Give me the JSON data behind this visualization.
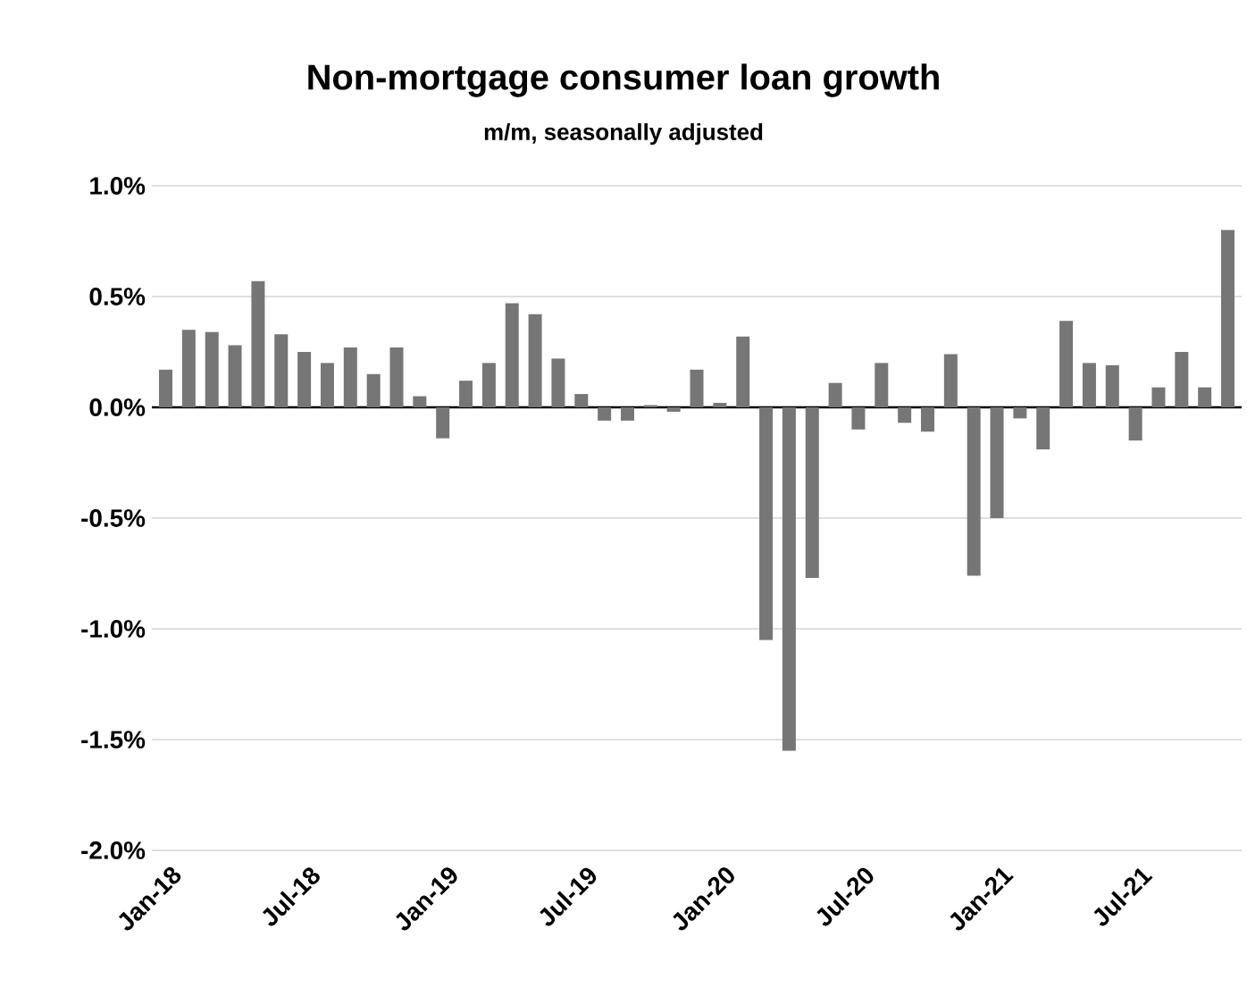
{
  "chart_data": {
    "type": "bar",
    "title": "Non-mortgage consumer loan growth",
    "subtitle": "m/m, seasonally adjusted",
    "categories": [
      "Jan-18",
      null,
      null,
      null,
      null,
      null,
      "Jul-18",
      null,
      null,
      null,
      null,
      null,
      "Jan-19",
      null,
      null,
      null,
      null,
      null,
      "Jul-19",
      null,
      null,
      null,
      null,
      null,
      "Jan-20",
      null,
      null,
      null,
      null,
      null,
      "Jul-20",
      null,
      null,
      null,
      null,
      null,
      "Jan-21",
      null,
      null,
      null,
      null,
      null,
      "Jul-21",
      null,
      null,
      null,
      null
    ],
    "values": [
      0.17,
      0.35,
      0.34,
      0.28,
      0.57,
      0.33,
      0.25,
      0.2,
      0.27,
      0.15,
      0.27,
      0.05,
      -0.14,
      0.12,
      0.2,
      0.47,
      0.42,
      0.22,
      0.06,
      -0.06,
      -0.06,
      0.01,
      -0.02,
      0.17,
      0.02,
      0.32,
      -1.05,
      -1.55,
      -0.77,
      0.11,
      -0.1,
      0.2,
      -0.07,
      -0.11,
      0.24,
      -0.76,
      -0.5,
      -0.05,
      -0.19,
      0.39,
      0.2,
      0.19,
      -0.15,
      0.09,
      0.25,
      0.09,
      0.8
    ],
    "color": "#767676",
    "ylim": [
      -2,
      1
    ],
    "yticks": [
      {
        "value": -2,
        "label": "-2.0%"
      },
      {
        "value": -1.5,
        "label": "-1.5%"
      },
      {
        "value": -1,
        "label": "-1.0%"
      },
      {
        "value": -0.5,
        "label": "-0.5%"
      },
      {
        "value": 0,
        "label": "0.0%"
      },
      {
        "value": 0.5,
        "label": "0.5%"
      },
      {
        "value": 1,
        "label": "1.0%"
      }
    ],
    "grid": "y"
  }
}
